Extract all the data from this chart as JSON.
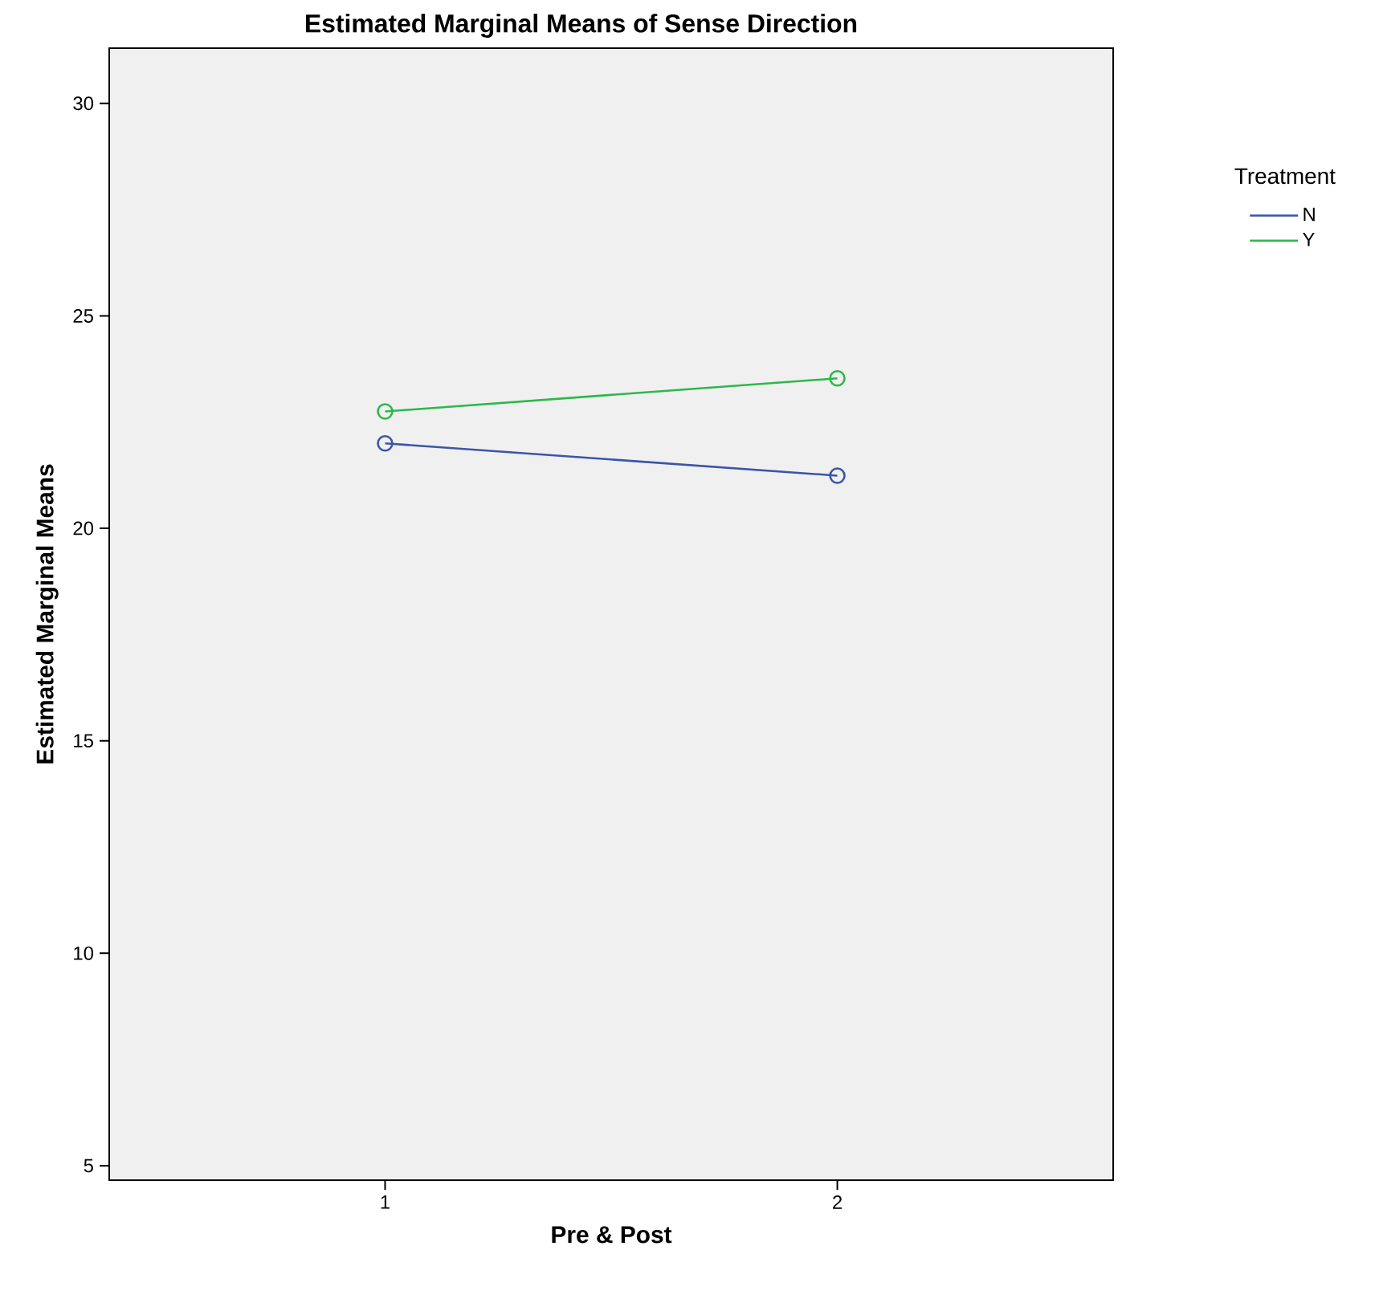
{
  "chart_data": {
    "type": "line",
    "title": "Estimated Marginal Means of Sense Direction",
    "xlabel": "Pre & Post",
    "ylabel": "Estimated Marginal Means",
    "legend_title": "Treatment",
    "categories": [
      "1",
      "2"
    ],
    "series": [
      {
        "name": "N",
        "color": "#3b55a8",
        "values": [
          22.0,
          21.24
        ]
      },
      {
        "name": "Y",
        "color": "#2cb84a",
        "values": [
          22.75,
          23.53
        ]
      }
    ],
    "ylim": [
      4.66,
      31.3
    ],
    "yticks": [
      5,
      10,
      15,
      20,
      25,
      30
    ],
    "grid": false,
    "legend": "right",
    "marker": "circle",
    "line_style": "solid"
  }
}
